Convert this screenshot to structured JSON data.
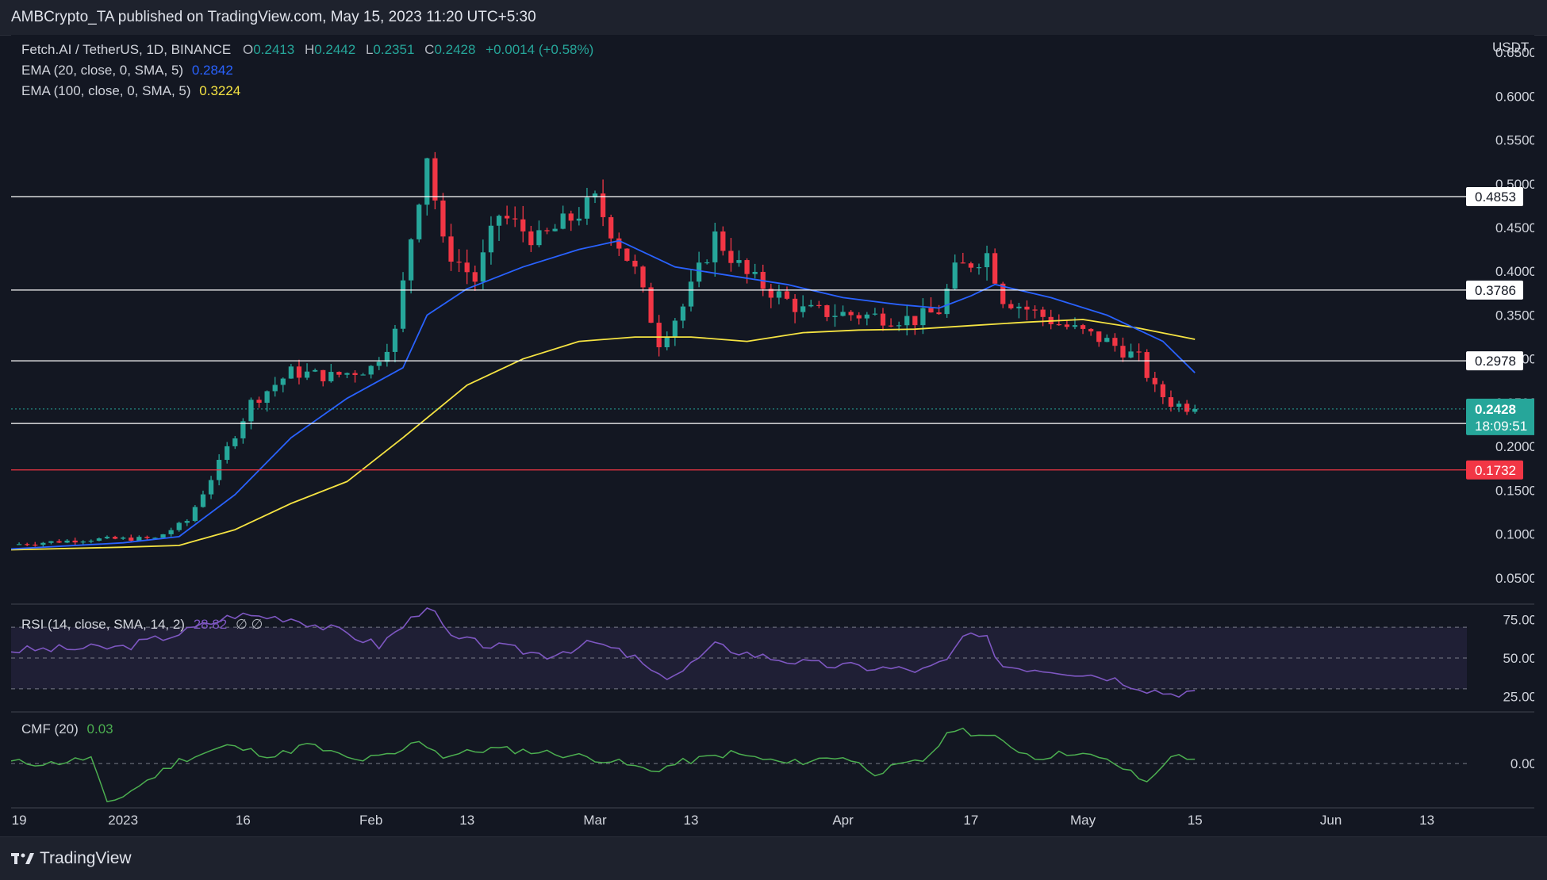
{
  "header": {
    "published": "AMBCrypto_TA published on TradingView.com, May 15, 2023 11:20 UTC+5:30"
  },
  "legend": {
    "symbol": "Fetch.AI / TetherUS, 1D, BINANCE",
    "o_label": "O",
    "o": "0.2413",
    "h_label": "H",
    "h": "0.2442",
    "l_label": "L",
    "l": "0.2351",
    "c_label": "C",
    "c": "0.2428",
    "change": "+0.0014 (+0.58%)",
    "ema20_label": "EMA (20, close, 0, SMA, 5)",
    "ema20_value": "0.2842",
    "ema100_label": "EMA (100, close, 0, SMA, 5)",
    "ema100_value": "0.3224",
    "rsi_label": "RSI (14, close, SMA, 14, 2)",
    "rsi_value": "28.82",
    "rsi_extra": "∅ ∅",
    "cmf_label": "CMF (20)",
    "cmf_value": "0.03"
  },
  "footer": {
    "brand": "TradingView"
  },
  "colors": {
    "up": "#26a69a",
    "down": "#f23645",
    "ema20": "#2962ff",
    "ema100": "#f5e342",
    "rsi": "#7e57c2",
    "cmf": "#4caf50",
    "support": "#f23645"
  },
  "chart_data": {
    "type": "candlestick",
    "title": "Fetch.AI / TetherUS, 1D, BINANCE",
    "currency_label": "USDT",
    "price_range": [
      0.02,
      0.67
    ],
    "price_ticks": [
      "0.6500",
      "0.6000",
      "0.5500",
      "0.5000",
      "0.4500",
      "0.4000",
      "0.3500",
      "0.3000",
      "0.2500",
      "0.2000",
      "0.1500",
      "0.1000",
      "0.0500"
    ],
    "x_ticks": [
      {
        "label": "19",
        "date": "2022-12-19"
      },
      {
        "label": "2023",
        "date": "2023-01-01"
      },
      {
        "label": "16",
        "date": "2023-01-16"
      },
      {
        "label": "Feb",
        "date": "2023-02-01"
      },
      {
        "label": "13",
        "date": "2023-02-13"
      },
      {
        "label": "Mar",
        "date": "2023-03-01"
      },
      {
        "label": "13",
        "date": "2023-03-13"
      },
      {
        "label": "Apr",
        "date": "2023-04-01"
      },
      {
        "label": "17",
        "date": "2023-04-17"
      },
      {
        "label": "May",
        "date": "2023-05-01"
      },
      {
        "label": "15",
        "date": "2023-05-15"
      },
      {
        "label": "Jun",
        "date": "2023-06-01"
      },
      {
        "label": "13",
        "date": "2023-06-13"
      }
    ],
    "date_range": [
      "2022-12-18",
      "2023-06-18"
    ],
    "horizontal_levels": [
      {
        "price": 0.4853,
        "label": "0.4853",
        "color": "#ffffff"
      },
      {
        "price": 0.3786,
        "label": "0.3786",
        "color": "#ffffff"
      },
      {
        "price": 0.2978,
        "label": "0.2978",
        "color": "#ffffff"
      },
      {
        "price": 0.2263,
        "label": "0.2263",
        "color": "#ffffff"
      },
      {
        "price": 0.1732,
        "label": "0.1732",
        "color": "#f23645"
      }
    ],
    "last_price": {
      "price": 0.2428,
      "label": "0.2428",
      "countdown": "18:09:51"
    },
    "close_path": [
      [
        "2022-12-18",
        0.088
      ],
      [
        "2022-12-28",
        0.094
      ],
      [
        "2023-01-05",
        0.095
      ],
      [
        "2023-01-09",
        0.115
      ],
      [
        "2023-01-13",
        0.18
      ],
      [
        "2023-01-17",
        0.25
      ],
      [
        "2023-01-22",
        0.285
      ],
      [
        "2023-01-27",
        0.28
      ],
      [
        "2023-02-01",
        0.29
      ],
      [
        "2023-02-04",
        0.33
      ],
      [
        "2023-02-06",
        0.44
      ],
      [
        "2023-02-08",
        0.535
      ],
      [
        "2023-02-10",
        0.43
      ],
      [
        "2023-02-14",
        0.39
      ],
      [
        "2023-02-17",
        0.465
      ],
      [
        "2023-02-22",
        0.435
      ],
      [
        "2023-03-01",
        0.48
      ],
      [
        "2023-03-06",
        0.4
      ],
      [
        "2023-03-09",
        0.32
      ],
      [
        "2023-03-12",
        0.36
      ],
      [
        "2023-03-16",
        0.44
      ],
      [
        "2023-03-20",
        0.395
      ],
      [
        "2023-03-27",
        0.355
      ],
      [
        "2023-04-03",
        0.35
      ],
      [
        "2023-04-10",
        0.345
      ],
      [
        "2023-04-13",
        0.355
      ],
      [
        "2023-04-15",
        0.4
      ],
      [
        "2023-04-19",
        0.42
      ],
      [
        "2023-04-21",
        0.37
      ],
      [
        "2023-04-28",
        0.34
      ],
      [
        "2023-05-04",
        0.32
      ],
      [
        "2023-05-08",
        0.3
      ],
      [
        "2023-05-10",
        0.265
      ],
      [
        "2023-05-12",
        0.25
      ],
      [
        "2023-05-15",
        0.2428
      ]
    ],
    "ema20": [
      [
        "2022-12-18",
        0.083
      ],
      [
        "2023-01-01",
        0.09
      ],
      [
        "2023-01-08",
        0.097
      ],
      [
        "2023-01-15",
        0.145
      ],
      [
        "2023-01-22",
        0.21
      ],
      [
        "2023-01-29",
        0.255
      ],
      [
        "2023-02-05",
        0.29
      ],
      [
        "2023-02-08",
        0.35
      ],
      [
        "2023-02-13",
        0.38
      ],
      [
        "2023-02-20",
        0.405
      ],
      [
        "2023-02-27",
        0.425
      ],
      [
        "2023-03-04",
        0.435
      ],
      [
        "2023-03-11",
        0.405
      ],
      [
        "2023-03-18",
        0.395
      ],
      [
        "2023-03-25",
        0.385
      ],
      [
        "2023-04-01",
        0.37
      ],
      [
        "2023-04-08",
        0.362
      ],
      [
        "2023-04-13",
        0.358
      ],
      [
        "2023-04-17",
        0.372
      ],
      [
        "2023-04-20",
        0.385
      ],
      [
        "2023-04-27",
        0.37
      ],
      [
        "2023-05-04",
        0.35
      ],
      [
        "2023-05-11",
        0.32
      ],
      [
        "2023-05-15",
        0.2842
      ]
    ],
    "ema100": [
      [
        "2022-12-18",
        0.082
      ],
      [
        "2023-01-01",
        0.085
      ],
      [
        "2023-01-08",
        0.087
      ],
      [
        "2023-01-15",
        0.105
      ],
      [
        "2023-01-22",
        0.135
      ],
      [
        "2023-01-29",
        0.16
      ],
      [
        "2023-02-05",
        0.21
      ],
      [
        "2023-02-13",
        0.27
      ],
      [
        "2023-02-20",
        0.3
      ],
      [
        "2023-02-27",
        0.32
      ],
      [
        "2023-03-06",
        0.325
      ],
      [
        "2023-03-13",
        0.325
      ],
      [
        "2023-03-20",
        0.32
      ],
      [
        "2023-03-27",
        0.33
      ],
      [
        "2023-04-03",
        0.333
      ],
      [
        "2023-04-10",
        0.334
      ],
      [
        "2023-04-17",
        0.338
      ],
      [
        "2023-04-24",
        0.342
      ],
      [
        "2023-05-01",
        0.345
      ],
      [
        "2023-05-08",
        0.335
      ],
      [
        "2023-05-15",
        0.3224
      ]
    ],
    "rsi": {
      "range": [
        15,
        85
      ],
      "ticks": [
        "75.00",
        "50.00",
        "25.00"
      ],
      "bands": [
        70,
        50,
        30
      ],
      "values": [
        [
          "2022-12-18",
          55
        ],
        [
          "2022-12-25",
          56
        ],
        [
          "2023-01-01",
          57
        ],
        [
          "2023-01-08",
          66
        ],
        [
          "2023-01-15",
          78
        ],
        [
          "2023-01-22",
          76
        ],
        [
          "2023-01-29",
          66
        ],
        [
          "2023-02-02",
          58
        ],
        [
          "2023-02-06",
          75
        ],
        [
          "2023-02-08",
          85
        ],
        [
          "2023-02-11",
          63
        ],
        [
          "2023-02-16",
          58
        ],
        [
          "2023-02-23",
          52
        ],
        [
          "2023-03-01",
          60
        ],
        [
          "2023-03-06",
          50
        ],
        [
          "2023-03-09",
          37
        ],
        [
          "2023-03-12",
          42
        ],
        [
          "2023-03-16",
          58
        ],
        [
          "2023-03-21",
          52
        ],
        [
          "2023-03-28",
          46
        ],
        [
          "2023-04-04",
          44
        ],
        [
          "2023-04-11",
          42
        ],
        [
          "2023-04-14",
          48
        ],
        [
          "2023-04-16",
          64
        ],
        [
          "2023-04-19",
          62
        ],
        [
          "2023-04-21",
          45
        ],
        [
          "2023-04-28",
          42
        ],
        [
          "2023-05-04",
          38
        ],
        [
          "2023-05-09",
          30
        ],
        [
          "2023-05-12",
          27
        ],
        [
          "2023-05-15",
          28.82
        ]
      ]
    },
    "cmf": {
      "range": [
        -0.3,
        0.35
      ],
      "ticks": [
        "0.00"
      ],
      "values": [
        [
          "2022-12-18",
          0.01
        ],
        [
          "2022-12-23",
          0.0
        ],
        [
          "2022-12-28",
          0.04
        ],
        [
          "2022-12-30",
          -0.28
        ],
        [
          "2023-01-03",
          -0.15
        ],
        [
          "2023-01-08",
          0.02
        ],
        [
          "2023-01-14",
          0.12
        ],
        [
          "2023-01-20",
          0.05
        ],
        [
          "2023-01-24",
          0.13
        ],
        [
          "2023-01-30",
          0.02
        ],
        [
          "2023-02-04",
          0.06
        ],
        [
          "2023-02-07",
          0.16
        ],
        [
          "2023-02-10",
          0.05
        ],
        [
          "2023-02-16",
          0.1
        ],
        [
          "2023-02-22",
          0.08
        ],
        [
          "2023-02-27",
          0.05
        ],
        [
          "2023-03-03",
          0.02
        ],
        [
          "2023-03-08",
          -0.05
        ],
        [
          "2023-03-12",
          0.01
        ],
        [
          "2023-03-18",
          0.07
        ],
        [
          "2023-03-25",
          0.0
        ],
        [
          "2023-04-01",
          0.05
        ],
        [
          "2023-04-05",
          -0.06
        ],
        [
          "2023-04-11",
          0.02
        ],
        [
          "2023-04-15",
          0.24
        ],
        [
          "2023-04-20",
          0.17
        ],
        [
          "2023-04-25",
          0.04
        ],
        [
          "2023-04-30",
          0.08
        ],
        [
          "2023-05-05",
          0.0
        ],
        [
          "2023-05-09",
          -0.13
        ],
        [
          "2023-05-11",
          0.0
        ],
        [
          "2023-05-13",
          0.06
        ],
        [
          "2023-05-15",
          0.03
        ]
      ]
    }
  }
}
